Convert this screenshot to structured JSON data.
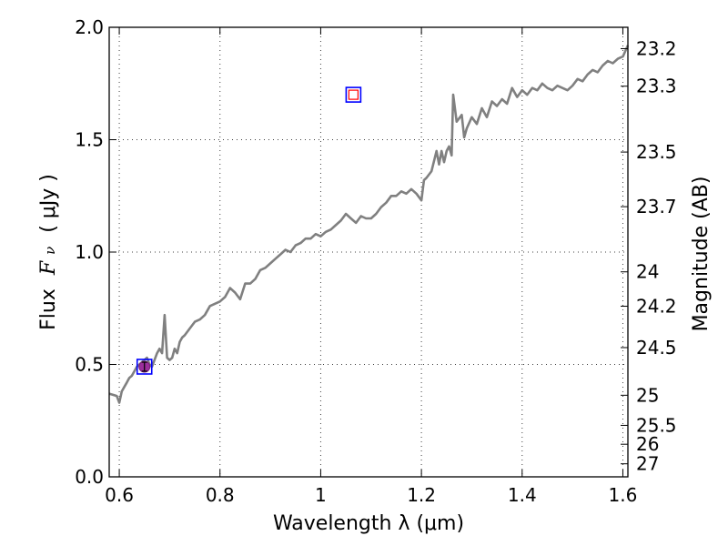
{
  "chart_data": {
    "type": "line",
    "xlabel": "Wavelength  λ (μm)",
    "ylabel": "Flux  Fν  ( μJy )",
    "ylabel_parts": {
      "flux": "Flux",
      "symbol": "F",
      "sub": "ν",
      "unit": "( μJy )"
    },
    "ylabel_right": "Magnitude (AB)",
    "xlim": [
      0.58,
      1.61
    ],
    "ylim": [
      0.0,
      2.0
    ],
    "grid": true,
    "x_ticks": [
      0.6,
      0.8,
      1.0,
      1.2,
      1.4,
      1.6
    ],
    "x_tick_labels": [
      "0.6",
      "0.8",
      "1",
      "1.2",
      "1.4",
      "1.6"
    ],
    "y_ticks": [
      0.0,
      0.5,
      1.0,
      1.5,
      2.0
    ],
    "y_tick_labels": [
      "0.0",
      "0.5",
      "1.0",
      "1.5",
      "2.0"
    ],
    "right_ticks": [
      {
        "label": "23.2",
        "flux": 1.905
      },
      {
        "label": "23.3",
        "flux": 1.738
      },
      {
        "label": "23.5",
        "flux": 1.445
      },
      {
        "label": "23.7",
        "flux": 1.202
      },
      {
        "label": "24",
        "flux": 0.912
      },
      {
        "label": "24.2",
        "flux": 0.759
      },
      {
        "label": "24.5",
        "flux": 0.575
      },
      {
        "label": "25",
        "flux": 0.363
      },
      {
        "label": "25.5",
        "flux": 0.229
      },
      {
        "label": "26",
        "flux": 0.145
      },
      {
        "label": "27",
        "flux": 0.058
      }
    ],
    "series": [
      {
        "name": "spectrum",
        "color": "#808080",
        "x": [
          0.58,
          0.595,
          0.6,
          0.605,
          0.61,
          0.615,
          0.62,
          0.625,
          0.63,
          0.635,
          0.64,
          0.645,
          0.65,
          0.655,
          0.66,
          0.665,
          0.67,
          0.675,
          0.68,
          0.685,
          0.69,
          0.695,
          0.7,
          0.705,
          0.71,
          0.715,
          0.72,
          0.725,
          0.73,
          0.74,
          0.75,
          0.76,
          0.77,
          0.78,
          0.79,
          0.8,
          0.81,
          0.82,
          0.83,
          0.84,
          0.85,
          0.86,
          0.87,
          0.88,
          0.89,
          0.9,
          0.91,
          0.92,
          0.93,
          0.94,
          0.95,
          0.96,
          0.97,
          0.98,
          0.99,
          1.0,
          1.01,
          1.02,
          1.03,
          1.04,
          1.05,
          1.06,
          1.07,
          1.08,
          1.09,
          1.1,
          1.11,
          1.12,
          1.13,
          1.14,
          1.15,
          1.16,
          1.17,
          1.18,
          1.19,
          1.2,
          1.205,
          1.21,
          1.22,
          1.23,
          1.235,
          1.24,
          1.245,
          1.25,
          1.255,
          1.26,
          1.263,
          1.27,
          1.28,
          1.285,
          1.29,
          1.3,
          1.31,
          1.32,
          1.33,
          1.34,
          1.35,
          1.36,
          1.37,
          1.38,
          1.39,
          1.4,
          1.41,
          1.42,
          1.43,
          1.44,
          1.45,
          1.46,
          1.47,
          1.48,
          1.49,
          1.5,
          1.51,
          1.52,
          1.53,
          1.54,
          1.55,
          1.56,
          1.57,
          1.58,
          1.59,
          1.6,
          1.61
        ],
        "y": [
          0.37,
          0.36,
          0.33,
          0.38,
          0.4,
          0.42,
          0.44,
          0.45,
          0.47,
          0.49,
          0.5,
          0.51,
          0.52,
          0.53,
          0.5,
          0.49,
          0.52,
          0.55,
          0.57,
          0.55,
          0.72,
          0.53,
          0.52,
          0.53,
          0.57,
          0.55,
          0.6,
          0.62,
          0.63,
          0.66,
          0.69,
          0.7,
          0.72,
          0.76,
          0.77,
          0.78,
          0.8,
          0.84,
          0.82,
          0.79,
          0.86,
          0.86,
          0.88,
          0.92,
          0.93,
          0.95,
          0.97,
          0.99,
          1.01,
          1.0,
          1.03,
          1.04,
          1.06,
          1.06,
          1.08,
          1.07,
          1.09,
          1.1,
          1.12,
          1.14,
          1.17,
          1.15,
          1.13,
          1.16,
          1.15,
          1.15,
          1.17,
          1.2,
          1.22,
          1.25,
          1.25,
          1.27,
          1.26,
          1.28,
          1.26,
          1.23,
          1.32,
          1.33,
          1.36,
          1.45,
          1.39,
          1.45,
          1.4,
          1.45,
          1.47,
          1.43,
          1.7,
          1.58,
          1.61,
          1.51,
          1.55,
          1.6,
          1.57,
          1.64,
          1.6,
          1.67,
          1.65,
          1.68,
          1.66,
          1.73,
          1.69,
          1.72,
          1.7,
          1.73,
          1.72,
          1.75,
          1.73,
          1.72,
          1.74,
          1.73,
          1.72,
          1.74,
          1.77,
          1.76,
          1.79,
          1.81,
          1.8,
          1.83,
          1.85,
          1.84,
          1.86,
          1.87,
          1.92
        ]
      }
    ],
    "markers": [
      {
        "name": "photometry-point",
        "x": 0.65,
        "y": 0.49,
        "yerr": 0.02,
        "style": "filled-circle",
        "color": "#9b2e9b"
      },
      {
        "name": "model-box-1",
        "x": 0.65,
        "y": 0.49,
        "style": "open-square",
        "color": "#0000ff"
      },
      {
        "name": "model-box-2",
        "x": 1.065,
        "y": 1.7,
        "style": "open-square",
        "color": "#0000ff",
        "inner_color": "#ff0000"
      }
    ]
  }
}
